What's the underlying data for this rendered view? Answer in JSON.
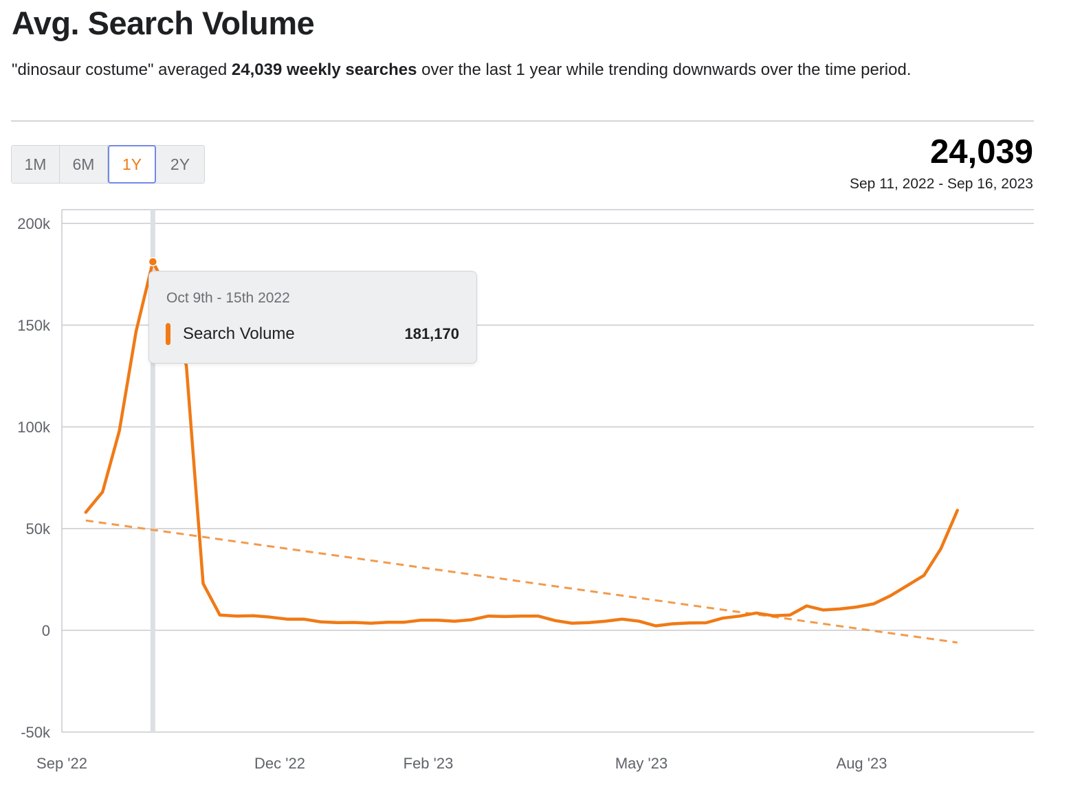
{
  "header": {
    "title": "Avg. Search Volume",
    "summary_prefix": "\"dinosaur costume\" averaged ",
    "summary_bold": "24,039 weekly searches",
    "summary_suffix": " over the last 1 year while trending downwards over the time period."
  },
  "range_selector": {
    "options": [
      "1M",
      "6M",
      "1Y",
      "2Y"
    ],
    "selected": "1Y"
  },
  "stat": {
    "value": "24,039",
    "date_range": "Sep 11, 2022 - Sep 16, 2023"
  },
  "tooltip": {
    "date": "Oct 9th - 15th 2022",
    "series_label": "Search Volume",
    "value": "181,170"
  },
  "colors": {
    "accent": "#f07a16",
    "trend": "#f29a4c",
    "selected_border": "#7388e6",
    "grid": "#c9cacd",
    "hover_line": "#dcdfe3"
  },
  "chart_data": {
    "type": "line",
    "title": "Avg. Search Volume",
    "xlabel": "",
    "ylabel": "",
    "ylim": [
      -50000,
      200000
    ],
    "y_ticks": [
      200000,
      150000,
      100000,
      50000,
      0,
      -50000
    ],
    "y_tick_labels": [
      "200k",
      "150k",
      "100k",
      "50k",
      "0",
      "-50k"
    ],
    "x_range": [
      "2022-09-11",
      "2023-09-16"
    ],
    "x_ticks": [
      "2022-09-01",
      "2022-12-01",
      "2023-02-01",
      "2023-05-01",
      "2023-08-01"
    ],
    "x_tick_labels": [
      "Sep '22",
      "Dec '22",
      "Feb '23",
      "May '23",
      "Aug '23"
    ],
    "grid": true,
    "hover_date": "2022-10-09",
    "series": [
      {
        "name": "Search Volume",
        "x": [
          "2022-09-11",
          "2022-09-18",
          "2022-09-25",
          "2022-10-02",
          "2022-10-09",
          "2022-10-16",
          "2022-10-23",
          "2022-10-30",
          "2022-11-06",
          "2022-11-13",
          "2022-11-20",
          "2022-11-27",
          "2022-12-04",
          "2022-12-11",
          "2022-12-18",
          "2022-12-25",
          "2023-01-01",
          "2023-01-08",
          "2023-01-15",
          "2023-01-22",
          "2023-01-29",
          "2023-02-05",
          "2023-02-12",
          "2023-02-19",
          "2023-02-26",
          "2023-03-05",
          "2023-03-12",
          "2023-03-19",
          "2023-03-26",
          "2023-04-02",
          "2023-04-09",
          "2023-04-16",
          "2023-04-23",
          "2023-04-30",
          "2023-05-07",
          "2023-05-14",
          "2023-05-21",
          "2023-05-28",
          "2023-06-04",
          "2023-06-11",
          "2023-06-18",
          "2023-06-25",
          "2023-07-02",
          "2023-07-09",
          "2023-07-16",
          "2023-07-23",
          "2023-07-30",
          "2023-08-06",
          "2023-08-13",
          "2023-08-20",
          "2023-08-27",
          "2023-09-03",
          "2023-09-10"
        ],
        "values": [
          58000,
          68000,
          98000,
          147000,
          181170,
          165000,
          130000,
          23000,
          7500,
          7000,
          7200,
          6500,
          5500,
          5500,
          4200,
          3800,
          3900,
          3500,
          4000,
          4000,
          5000,
          5000,
          4500,
          5200,
          7000,
          6800,
          7000,
          7000,
          4800,
          3500,
          3800,
          4500,
          5500,
          4500,
          2200,
          3200,
          3600,
          3700,
          6000,
          7000,
          8500,
          7200,
          7500,
          12000,
          10000,
          10500,
          11500,
          13000,
          17000,
          22000,
          27000,
          40000,
          59000
        ]
      },
      {
        "name": "Trend",
        "style": "dashed",
        "x": [
          "2022-09-11",
          "2023-09-10"
        ],
        "values": [
          54000,
          -6000
        ]
      }
    ]
  }
}
